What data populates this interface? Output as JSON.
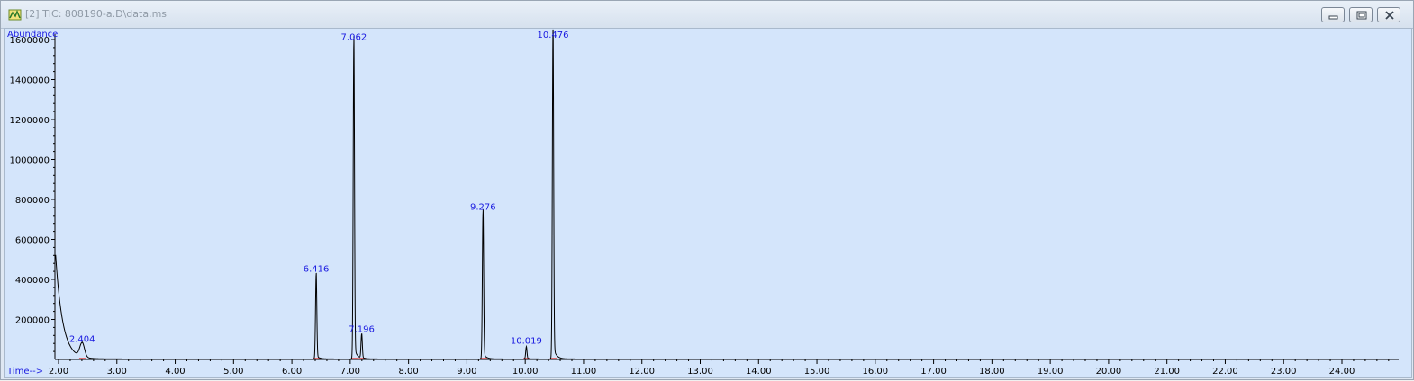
{
  "window": {
    "title": "[2] TIC: 808190-a.D\\data.ms",
    "controls": [
      "minimize",
      "restore",
      "close"
    ],
    "icon": "chromatogram-app-icon"
  },
  "chart_data": {
    "type": "line",
    "title": "",
    "xlabel": "Time-->",
    "ylabel": "Abundance",
    "xlim": [
      1.95,
      25.0
    ],
    "ylim": [
      0,
      1600000
    ],
    "grid": false,
    "x_ticks": [
      2.0,
      3.0,
      4.0,
      5.0,
      6.0,
      7.0,
      8.0,
      9.0,
      10.0,
      11.0,
      12.0,
      13.0,
      14.0,
      15.0,
      16.0,
      17.0,
      18.0,
      19.0,
      20.0,
      21.0,
      22.0,
      23.0,
      24.0
    ],
    "x_tick_labels": [
      "2.00",
      "3.00",
      "4.00",
      "5.00",
      "6.00",
      "7.00",
      "8.00",
      "9.00",
      "10.00",
      "11.00",
      "12.00",
      "13.00",
      "14.00",
      "15.00",
      "16.00",
      "17.00",
      "18.00",
      "19.00",
      "20.00",
      "21.00",
      "22.00",
      "23.00",
      "24.00"
    ],
    "y_ticks": [
      200000,
      400000,
      600000,
      800000,
      1000000,
      1200000,
      1400000,
      1600000
    ],
    "y_tick_labels": [
      "200000",
      "400000",
      "600000",
      "800000",
      "1000000",
      "1200000",
      "1400000",
      "1600000"
    ],
    "peaks": [
      {
        "rt": 2.404,
        "label": "2.404",
        "height": 70000
      },
      {
        "rt": 6.416,
        "label": "6.416",
        "height": 420000
      },
      {
        "rt": 7.062,
        "label": "7.062",
        "height": 1580000
      },
      {
        "rt": 7.196,
        "label": "7.196",
        "height": 120000
      },
      {
        "rt": 9.276,
        "label": "9.276",
        "height": 730000
      },
      {
        "rt": 10.019,
        "label": "10.019",
        "height": 60000
      },
      {
        "rt": 10.476,
        "label": "10.476",
        "height": 1640000
      }
    ],
    "initial_tail": {
      "start_rt": 1.95,
      "start_abundance": 520000
    },
    "colors": {
      "background": "#d4e5fb",
      "trace": "#000000",
      "labels": "#1a1ae0",
      "baseline_marks": "#e04040"
    }
  }
}
